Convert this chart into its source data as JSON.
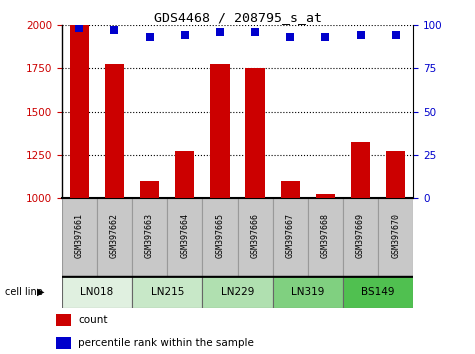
{
  "title": "GDS4468 / 208795_s_at",
  "samples": [
    "GSM397661",
    "GSM397662",
    "GSM397663",
    "GSM397664",
    "GSM397665",
    "GSM397666",
    "GSM397667",
    "GSM397668",
    "GSM397669",
    "GSM397670"
  ],
  "counts": [
    2000,
    1775,
    1100,
    1275,
    1775,
    1750,
    1100,
    1025,
    1325,
    1275
  ],
  "percentile_ranks": [
    98,
    97,
    93,
    94,
    96,
    96,
    93,
    93,
    94,
    94
  ],
  "cell_lines": [
    {
      "name": "LN018",
      "start": 0,
      "end": 2,
      "color": "#e0f0e0"
    },
    {
      "name": "LN215",
      "start": 2,
      "end": 4,
      "color": "#c8e8c8"
    },
    {
      "name": "LN229",
      "start": 4,
      "end": 6,
      "color": "#b0e0b0"
    },
    {
      "name": "LN319",
      "start": 6,
      "end": 8,
      "color": "#80d080"
    },
    {
      "name": "BS149",
      "start": 8,
      "end": 10,
      "color": "#50c050"
    }
  ],
  "ylim_left": [
    1000,
    2000
  ],
  "ylim_right": [
    0,
    100
  ],
  "bar_color": "#cc0000",
  "dot_color": "#0000cc",
  "tick_color_left": "#cc0000",
  "tick_color_right": "#0000cc",
  "yticks_left": [
    1000,
    1250,
    1500,
    1750,
    2000
  ],
  "yticks_right": [
    0,
    25,
    50,
    75,
    100
  ],
  "bar_width": 0.55,
  "dot_size": 35,
  "label_box_color": "#c8c8c8",
  "label_box_edge": "#999999"
}
